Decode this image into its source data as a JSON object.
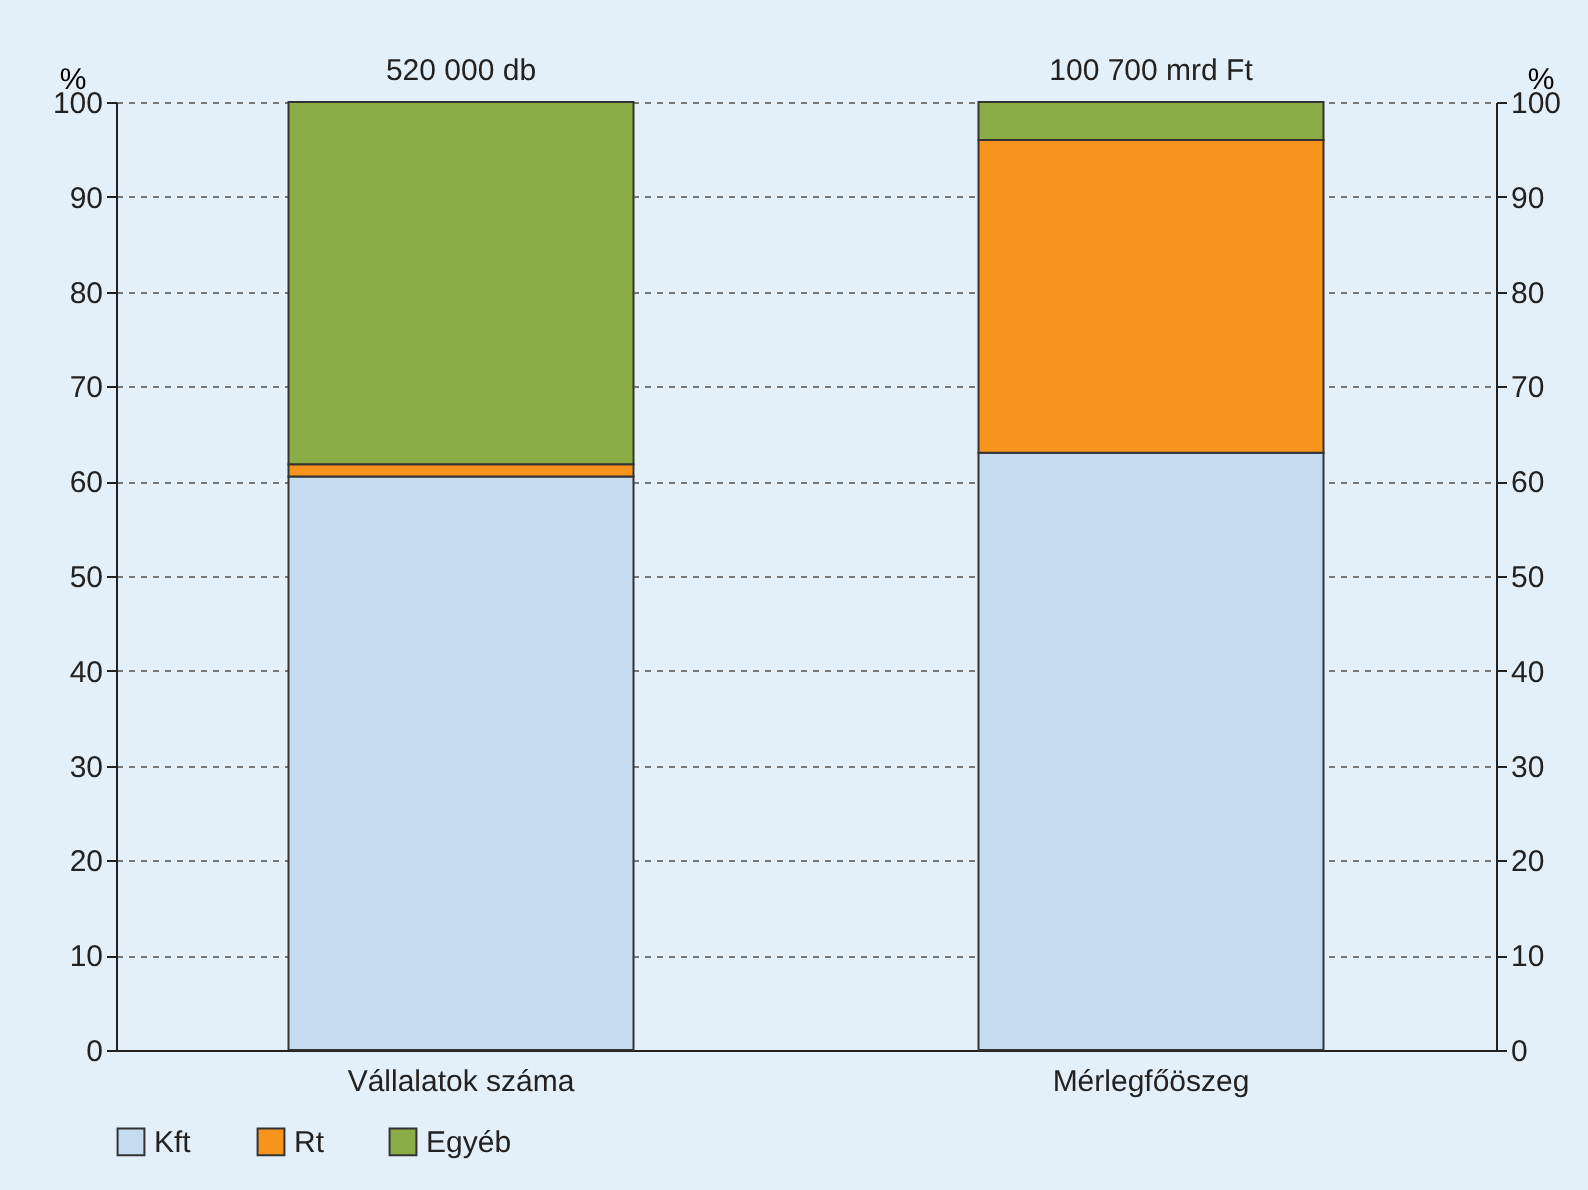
{
  "chart_data": {
    "type": "bar",
    "stacked": true,
    "categories": [
      "Vállalatok száma",
      "Mérlegfőöszeg"
    ],
    "series": [
      {
        "name": "Kft",
        "color": "#c5dbef",
        "values": [
          60.5,
          63
        ]
      },
      {
        "name": "Rt",
        "color": "#f7941d",
        "values": [
          1.3,
          33
        ]
      },
      {
        "name": "Egyéb",
        "color": "#8cac46",
        "values": [
          38.2,
          4
        ]
      }
    ],
    "annotations": [
      "520 000 db",
      "100 700 mrd Ft"
    ],
    "ylabel": "%",
    "y2label": "%",
    "ylim": [
      0,
      100
    ],
    "yticks": [
      0,
      10,
      20,
      30,
      40,
      50,
      60,
      70,
      80,
      90,
      100
    ],
    "y2lim": [
      0,
      100
    ],
    "y2ticks": [
      0,
      10,
      20,
      30,
      40,
      50,
      60,
      70,
      80,
      90,
      100
    ],
    "grid": "y",
    "legend": "bottom left"
  }
}
